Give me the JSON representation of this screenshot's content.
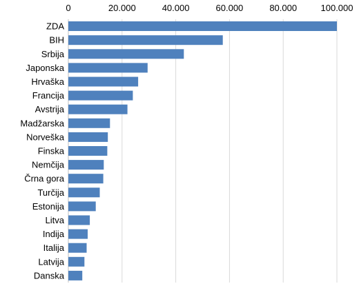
{
  "chart_data": {
    "type": "bar",
    "orientation": "horizontal",
    "title": "",
    "xlabel": "",
    "ylabel": "",
    "axis_position": "top",
    "grid": true,
    "legend": "none",
    "bar_color": "#4f81bd",
    "grid_color": "#d9d9d9",
    "xlim": [
      0,
      100000
    ],
    "xticks": [
      0,
      20000,
      40000,
      60000,
      80000,
      100000
    ],
    "xtick_labels": [
      "0",
      "20.000",
      "40.000",
      "60.000",
      "80.000",
      "100.000"
    ],
    "categories": [
      "ZDA",
      "BIH",
      "Srbija",
      "Japonska",
      "Hrvaška",
      "Francija",
      "Avstrija",
      "Madžarska",
      "Norveška",
      "Finska",
      "Nemčija",
      "Črna gora",
      "Turčija",
      "Estonija",
      "Litva",
      "Indija",
      "Italija",
      "Latvija",
      "Danska"
    ],
    "values": [
      100000,
      57500,
      43000,
      29500,
      26000,
      24000,
      22000,
      15500,
      14700,
      14500,
      13200,
      13000,
      11700,
      10200,
      8000,
      7200,
      6800,
      6000,
      5200
    ]
  }
}
